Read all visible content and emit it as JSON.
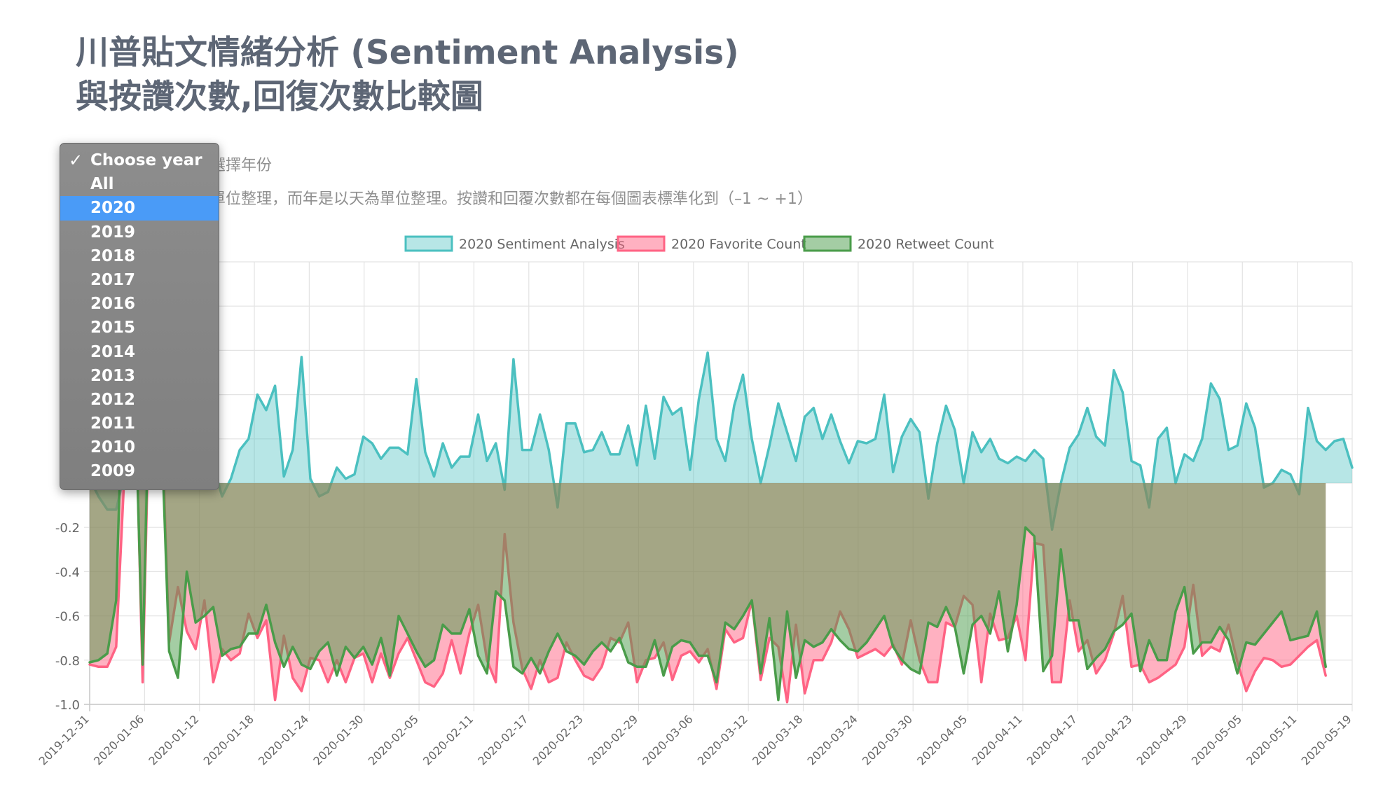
{
  "header": {
    "title_line1": "川普貼文情緒分析 (Sentiment Analysis)",
    "title_line2": "與按讚次數,回復次數比較圖"
  },
  "controls": {
    "choose_label": "選擇年份",
    "description": "單位整理，而年是以天為單位整理。按讚和回覆次數都在每個圖表標準化到（–1 ~ +1）"
  },
  "year_select": {
    "placeholder": "Choose year",
    "check_icon": "checkmark-icon",
    "selected": "2020",
    "options": [
      "Choose year",
      "All",
      "2020",
      "2019",
      "2018",
      "2017",
      "2016",
      "2015",
      "2014",
      "2013",
      "2012",
      "2011",
      "2010",
      "2009"
    ]
  },
  "chart_data": {
    "type": "line",
    "legend_position": "top-center",
    "grid": true,
    "ylim": [
      -1.0,
      1.0
    ],
    "y_ticks": [
      -0.2,
      -0.4,
      -0.6,
      -0.8,
      -1.0
    ],
    "y_tick_labels": [
      "-0.2",
      "-0.4",
      "-0.6",
      "-0.8",
      "-1.0"
    ],
    "x_start": "2019-12-31",
    "x_end": "2020-05-19",
    "x_tick_labels": [
      "2019-12-31",
      "2020-01-06",
      "2020-01-12",
      "2020-01-18",
      "2020-01-24",
      "2020-01-30",
      "2020-02-05",
      "2020-02-11",
      "2020-02-17",
      "2020-02-23",
      "2020-02-29",
      "2020-03-06",
      "2020-03-12",
      "2020-03-18",
      "2020-03-24",
      "2020-03-30",
      "2020-04-05",
      "2020-04-11",
      "2020-04-17",
      "2020-04-23",
      "2020-04-29",
      "2020-05-05",
      "2020-05-11",
      "2020-05-19"
    ],
    "series": [
      {
        "name": "2020 Sentiment Analysis",
        "color": "#4bc0c0",
        "fill": "rgba(75,192,192,0.4)",
        "values": [
          0.02,
          -0.06,
          -0.12,
          -0.12,
          0.05,
          0.2,
          0.4,
          0.3,
          0.35,
          0.45,
          0.42,
          0.25,
          0.18,
          0.06,
          0.08,
          -0.06,
          0.02,
          0.15,
          0.2,
          0.4,
          0.33,
          0.44,
          0.03,
          0.15,
          0.57,
          0.02,
          -0.06,
          -0.04,
          0.07,
          0.02,
          0.04,
          0.21,
          0.18,
          0.11,
          0.16,
          0.16,
          0.13,
          0.47,
          0.14,
          0.03,
          0.18,
          0.07,
          0.12,
          0.12,
          0.31,
          0.1,
          0.18,
          -0.03,
          0.56,
          0.15,
          0.15,
          0.31,
          0.15,
          -0.11,
          0.27,
          0.27,
          0.14,
          0.15,
          0.23,
          0.13,
          0.13,
          0.26,
          0.08,
          0.35,
          0.11,
          0.39,
          0.31,
          0.34,
          0.06,
          0.38,
          0.59,
          0.2,
          0.1,
          0.35,
          0.49,
          0.2,
          0.0,
          0.17,
          0.36,
          0.23,
          0.1,
          0.3,
          0.34,
          0.2,
          0.31,
          0.19,
          0.09,
          0.19,
          0.18,
          0.2,
          0.4,
          0.05,
          0.21,
          0.29,
          0.23,
          -0.07,
          0.18,
          0.35,
          0.24,
          0.0,
          0.23,
          0.14,
          0.2,
          0.11,
          0.09,
          0.12,
          0.1,
          0.15,
          0.11,
          -0.21,
          0.0,
          0.16,
          0.22,
          0.34,
          0.21,
          0.17,
          0.51,
          0.41,
          0.1,
          0.08,
          -0.11,
          0.2,
          0.25,
          0.0,
          0.13,
          0.1,
          0.2,
          0.45,
          0.38,
          0.15,
          0.17,
          0.36,
          0.25,
          -0.02,
          0.0,
          0.06,
          0.04,
          -0.05,
          0.34,
          0.19,
          0.15,
          0.19,
          0.2,
          0.07
        ]
      },
      {
        "name": "2020 Favorite Count",
        "color": "#ff6384",
        "fill": "rgba(255,99,132,0.5)",
        "values": [
          -0.82,
          -0.83,
          -0.83,
          -0.74,
          0.1,
          0.7,
          -0.9,
          0.8,
          0.5,
          -0.72,
          -0.47,
          -0.67,
          -0.75,
          -0.53,
          -0.9,
          -0.75,
          -0.8,
          -0.77,
          -0.59,
          -0.7,
          -0.62,
          -0.98,
          -0.69,
          -0.88,
          -0.94,
          -0.79,
          -0.8,
          -0.9,
          -0.8,
          -0.9,
          -0.79,
          -0.77,
          -0.9,
          -0.77,
          -0.88,
          -0.77,
          -0.7,
          -0.8,
          -0.9,
          -0.92,
          -0.86,
          -0.71,
          -0.86,
          -0.68,
          -0.55,
          -0.8,
          -0.9,
          -0.23,
          -0.63,
          -0.84,
          -0.93,
          -0.8,
          -0.9,
          -0.88,
          -0.72,
          -0.8,
          -0.87,
          -0.89,
          -0.83,
          -0.7,
          -0.72,
          -0.63,
          -0.9,
          -0.8,
          -0.79,
          -0.72,
          -0.89,
          -0.78,
          -0.76,
          -0.81,
          -0.75,
          -0.93,
          -0.66,
          -0.72,
          -0.7,
          -0.53,
          -0.89,
          -0.7,
          -0.74,
          -0.99,
          -0.64,
          -0.95,
          -0.8,
          -0.8,
          -0.72,
          -0.58,
          -0.66,
          -0.79,
          -0.77,
          -0.75,
          -0.78,
          -0.73,
          -0.82,
          -0.62,
          -0.8,
          -0.9,
          -0.9,
          -0.63,
          -0.65,
          -0.51,
          -0.55,
          -0.9,
          -0.59,
          -0.71,
          -0.7,
          -0.6,
          -0.8,
          -0.27,
          -0.28,
          -0.9,
          -0.9,
          -0.53,
          -0.76,
          -0.71,
          -0.86,
          -0.8,
          -0.68,
          -0.51,
          -0.83,
          -0.82,
          -0.9,
          -0.88,
          -0.85,
          -0.82,
          -0.74,
          -0.46,
          -0.78,
          -0.74,
          -0.76,
          -0.64,
          -0.81,
          -0.94,
          -0.85,
          -0.79,
          -0.8,
          -0.83,
          -0.82,
          -0.78,
          -0.74,
          -0.71,
          -0.87
        ]
      },
      {
        "name": "2020 Retweet Count",
        "color": "#4a9c4a",
        "fill": "rgba(74,156,74,0.5)",
        "values": [
          -0.81,
          -0.8,
          -0.77,
          -0.53,
          0.8,
          0.6,
          -0.82,
          0.9,
          0.4,
          -0.76,
          -0.88,
          -0.4,
          -0.63,
          -0.6,
          -0.56,
          -0.78,
          -0.75,
          -0.74,
          -0.68,
          -0.68,
          -0.55,
          -0.72,
          -0.83,
          -0.74,
          -0.82,
          -0.84,
          -0.76,
          -0.72,
          -0.87,
          -0.74,
          -0.79,
          -0.74,
          -0.82,
          -0.7,
          -0.87,
          -0.6,
          -0.68,
          -0.76,
          -0.83,
          -0.8,
          -0.64,
          -0.68,
          -0.68,
          -0.57,
          -0.78,
          -0.86,
          -0.49,
          -0.53,
          -0.83,
          -0.86,
          -0.79,
          -0.86,
          -0.76,
          -0.68,
          -0.76,
          -0.78,
          -0.82,
          -0.76,
          -0.72,
          -0.76,
          -0.7,
          -0.81,
          -0.83,
          -0.83,
          -0.71,
          -0.87,
          -0.74,
          -0.71,
          -0.72,
          -0.78,
          -0.78,
          -0.9,
          -0.63,
          -0.66,
          -0.6,
          -0.53,
          -0.86,
          -0.61,
          -0.98,
          -0.58,
          -0.88,
          -0.71,
          -0.74,
          -0.72,
          -0.66,
          -0.71,
          -0.75,
          -0.76,
          -0.72,
          -0.66,
          -0.6,
          -0.74,
          -0.8,
          -0.84,
          -0.86,
          -0.63,
          -0.65,
          -0.56,
          -0.65,
          -0.86,
          -0.64,
          -0.6,
          -0.68,
          -0.49,
          -0.76,
          -0.55,
          -0.2,
          -0.24,
          -0.85,
          -0.78,
          -0.3,
          -0.62,
          -0.62,
          -0.84,
          -0.79,
          -0.75,
          -0.67,
          -0.64,
          -0.59,
          -0.85,
          -0.71,
          -0.8,
          -0.8,
          -0.58,
          -0.47,
          -0.77,
          -0.72,
          -0.72,
          -0.65,
          -0.71,
          -0.86,
          -0.72,
          -0.73,
          -0.68,
          -0.63,
          -0.58,
          -0.71,
          -0.7,
          -0.69,
          -0.58,
          -0.83
        ]
      }
    ]
  }
}
